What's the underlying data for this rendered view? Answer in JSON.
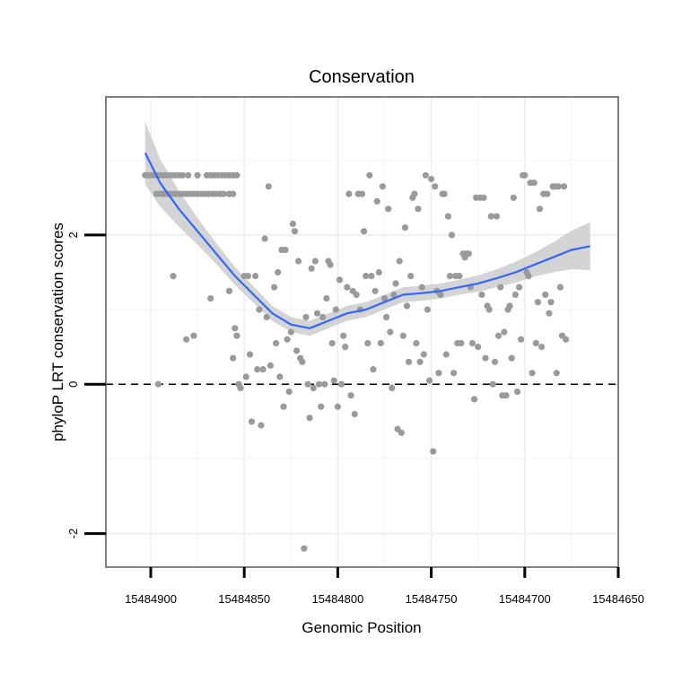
{
  "chart_data": {
    "type": "scatter",
    "title": "Conservation",
    "xlabel": "Genomic Position",
    "ylabel": "phyloP LRT conservation scores",
    "x_reversed": true,
    "xlim": [
      15484924,
      15484650
    ],
    "ylim": [
      -2.45,
      3.85
    ],
    "x_ticks": [
      15484900,
      15484850,
      15484800,
      15484750,
      15484700,
      15484650
    ],
    "y_ticks": [
      -2,
      0,
      2
    ],
    "grid": true,
    "reference_line": {
      "y": 0,
      "style": "dashed"
    },
    "colors": {
      "points": "#9a9a9a",
      "smooth": "#3366ff",
      "band": "#cccccc",
      "frame": "#808080"
    },
    "points": [
      [
        15484903,
        2.8
      ],
      [
        15484901,
        2.8
      ],
      [
        15484899,
        2.8
      ],
      [
        15484897,
        2.8
      ],
      [
        15484895,
        2.8
      ],
      [
        15484893,
        2.8
      ],
      [
        15484891,
        2.8
      ],
      [
        15484889,
        2.8
      ],
      [
        15484887,
        2.8
      ],
      [
        15484885,
        2.8
      ],
      [
        15484883,
        2.8
      ],
      [
        15484880,
        2.8
      ],
      [
        15484875,
        2.8
      ],
      [
        15484870,
        2.8
      ],
      [
        15484868,
        2.8
      ],
      [
        15484866,
        2.8
      ],
      [
        15484864,
        2.8
      ],
      [
        15484862,
        2.8
      ],
      [
        15484860,
        2.8
      ],
      [
        15484858,
        2.8
      ],
      [
        15484856,
        2.8
      ],
      [
        15484854,
        2.8
      ],
      [
        15484897,
        2.55
      ],
      [
        15484895,
        2.55
      ],
      [
        15484893,
        2.55
      ],
      [
        15484891,
        2.55
      ],
      [
        15484889,
        2.55
      ],
      [
        15484887,
        2.55
      ],
      [
        15484885,
        2.55
      ],
      [
        15484883,
        2.55
      ],
      [
        15484881,
        2.55
      ],
      [
        15484879,
        2.55
      ],
      [
        15484877,
        2.55
      ],
      [
        15484875,
        2.55
      ],
      [
        15484873,
        2.55
      ],
      [
        15484871,
        2.55
      ],
      [
        15484869,
        2.55
      ],
      [
        15484867,
        2.55
      ],
      [
        15484865,
        2.55
      ],
      [
        15484863,
        2.55
      ],
      [
        15484861,
        2.55
      ],
      [
        15484858,
        2.55
      ],
      [
        15484856,
        2.55
      ],
      [
        15484896,
        0.0
      ],
      [
        15484888,
        1.45
      ],
      [
        15484881,
        0.6
      ],
      [
        15484877,
        0.65
      ],
      [
        15484868,
        1.15
      ],
      [
        15484858,
        1.25
      ],
      [
        15484856,
        0.35
      ],
      [
        15484855,
        0.75
      ],
      [
        15484854,
        0.65
      ],
      [
        15484853,
        0.0
      ],
      [
        15484852,
        -0.05
      ],
      [
        15484850,
        1.45
      ],
      [
        15484849,
        0.1
      ],
      [
        15484848,
        1.45
      ],
      [
        15484847,
        0.4
      ],
      [
        15484846,
        -0.5
      ],
      [
        15484844,
        1.45
      ],
      [
        15484843,
        0.2
      ],
      [
        15484842,
        1.0
      ],
      [
        15484841,
        -0.55
      ],
      [
        15484840,
        0.2
      ],
      [
        15484839,
        1.95
      ],
      [
        15484838,
        0.9
      ],
      [
        15484837,
        2.65
      ],
      [
        15484836,
        0.25
      ],
      [
        15484834,
        1.3
      ],
      [
        15484833,
        0.55
      ],
      [
        15484832,
        1.5
      ],
      [
        15484831,
        0.1
      ],
      [
        15484830,
        1.8
      ],
      [
        15484829,
        -0.3
      ],
      [
        15484828,
        1.8
      ],
      [
        15484827,
        0.6
      ],
      [
        15484826,
        -0.1
      ],
      [
        15484825,
        0.7
      ],
      [
        15484824,
        2.15
      ],
      [
        15484823,
        2.05
      ],
      [
        15484822,
        0.45
      ],
      [
        15484821,
        1.65
      ],
      [
        15484820,
        0.35
      ],
      [
        15484819,
        0.3
      ],
      [
        15484818,
        -2.2
      ],
      [
        15484817,
        0.9
      ],
      [
        15484816,
        0.0
      ],
      [
        15484815,
        -0.45
      ],
      [
        15484814,
        1.55
      ],
      [
        15484813,
        -0.05
      ],
      [
        15484812,
        1.65
      ],
      [
        15484811,
        0.95
      ],
      [
        15484810,
        0.0
      ],
      [
        15484809,
        -0.3
      ],
      [
        15484808,
        0.9
      ],
      [
        15484807,
        0.0
      ],
      [
        15484806,
        1.15
      ],
      [
        15484805,
        1.65
      ],
      [
        15484804,
        1.6
      ],
      [
        15484803,
        0.55
      ],
      [
        15484802,
        0.05
      ],
      [
        15484801,
        1.0
      ],
      [
        15484800,
        -0.3
      ],
      [
        15484799,
        1.4
      ],
      [
        15484798,
        0.0
      ],
      [
        15484797,
        0.65
      ],
      [
        15484796,
        0.5
      ],
      [
        15484795,
        1.3
      ],
      [
        15484794,
        2.55
      ],
      [
        15484793,
        -0.15
      ],
      [
        15484792,
        1.25
      ],
      [
        15484791,
        -0.4
      ],
      [
        15484790,
        1.2
      ],
      [
        15484789,
        2.55
      ],
      [
        15484788,
        1.0
      ],
      [
        15484787,
        2.55
      ],
      [
        15484786,
        2.05
      ],
      [
        15484785,
        1.45
      ],
      [
        15484784,
        0.55
      ],
      [
        15484783,
        2.8
      ],
      [
        15484782,
        1.45
      ],
      [
        15484781,
        0.2
      ],
      [
        15484780,
        1.25
      ],
      [
        15484779,
        2.45
      ],
      [
        15484778,
        1.5
      ],
      [
        15484777,
        0.55
      ],
      [
        15484776,
        2.65
      ],
      [
        15484775,
        1.15
      ],
      [
        15484774,
        0.9
      ],
      [
        15484773,
        2.35
      ],
      [
        15484772,
        0.7
      ],
      [
        15484771,
        -0.05
      ],
      [
        15484770,
        1.2
      ],
      [
        15484769,
        1.35
      ],
      [
        15484768,
        -0.6
      ],
      [
        15484767,
        1.65
      ],
      [
        15484766,
        -0.65
      ],
      [
        15484765,
        0.65
      ],
      [
        15484764,
        2.1
      ],
      [
        15484763,
        1.05
      ],
      [
        15484762,
        0.3
      ],
      [
        15484761,
        1.45
      ],
      [
        15484760,
        2.5
      ],
      [
        15484759,
        2.55
      ],
      [
        15484758,
        0.55
      ],
      [
        15484757,
        2.35
      ],
      [
        15484756,
        0.3
      ],
      [
        15484755,
        1.3
      ],
      [
        15484754,
        0.4
      ],
      [
        15484753,
        2.8
      ],
      [
        15484752,
        1.0
      ],
      [
        15484751,
        0.05
      ],
      [
        15484750,
        2.75
      ],
      [
        15484749,
        -0.9
      ],
      [
        15484748,
        2.65
      ],
      [
        15484747,
        1.25
      ],
      [
        15484746,
        0.15
      ],
      [
        15484745,
        1.2
      ],
      [
        15484744,
        2.55
      ],
      [
        15484743,
        2.55
      ],
      [
        15484742,
        0.4
      ],
      [
        15484741,
        2.25
      ],
      [
        15484740,
        1.45
      ],
      [
        15484739,
        2.0
      ],
      [
        15484738,
        0.15
      ],
      [
        15484737,
        1.45
      ],
      [
        15484736,
        0.55
      ],
      [
        15484735,
        1.45
      ],
      [
        15484734,
        0.55
      ],
      [
        15484733,
        1.75
      ],
      [
        15484732,
        1.7
      ],
      [
        15484731,
        1.75
      ],
      [
        15484730,
        1.75
      ],
      [
        15484729,
        1.3
      ],
      [
        15484728,
        0.55
      ],
      [
        15484727,
        -0.2
      ],
      [
        15484726,
        2.5
      ],
      [
        15484725,
        0.5
      ],
      [
        15484724,
        2.5
      ],
      [
        15484723,
        1.2
      ],
      [
        15484722,
        2.5
      ],
      [
        15484721,
        0.35
      ],
      [
        15484720,
        1.05
      ],
      [
        15484719,
        1.0
      ],
      [
        15484718,
        2.25
      ],
      [
        15484717,
        0.0
      ],
      [
        15484716,
        0.3
      ],
      [
        15484715,
        2.25
      ],
      [
        15484714,
        0.65
      ],
      [
        15484713,
        1.3
      ],
      [
        15484712,
        -0.15
      ],
      [
        15484711,
        0.7
      ],
      [
        15484710,
        -0.15
      ],
      [
        15484709,
        1.0
      ],
      [
        15484708,
        1.05
      ],
      [
        15484707,
        0.35
      ],
      [
        15484706,
        2.5
      ],
      [
        15484705,
        1.2
      ],
      [
        15484704,
        -0.1
      ],
      [
        15484703,
        1.3
      ],
      [
        15484702,
        0.6
      ],
      [
        15484701,
        2.8
      ],
      [
        15484700,
        2.8
      ],
      [
        15484699,
        1.5
      ],
      [
        15484698,
        1.45
      ],
      [
        15484697,
        2.7
      ],
      [
        15484696,
        0.15
      ],
      [
        15484695,
        2.7
      ],
      [
        15484694,
        0.55
      ],
      [
        15484693,
        1.1
      ],
      [
        15484692,
        2.35
      ],
      [
        15484691,
        0.5
      ],
      [
        15484690,
        2.55
      ],
      [
        15484689,
        1.2
      ],
      [
        15484688,
        2.55
      ],
      [
        15484687,
        0.95
      ],
      [
        15484686,
        1.1
      ],
      [
        15484685,
        2.65
      ],
      [
        15484684,
        2.65
      ],
      [
        15484683,
        0.15
      ],
      [
        15484682,
        2.65
      ],
      [
        15484681,
        1.3
      ],
      [
        15484680,
        0.65
      ],
      [
        15484679,
        2.65
      ],
      [
        15484678,
        0.6
      ]
    ],
    "smooth": {
      "x": [
        15484903,
        15484895,
        15484885,
        15484875,
        15484865,
        15484855,
        15484845,
        15484835,
        15484825,
        15484815,
        15484805,
        15484795,
        15484785,
        15484775,
        15484765,
        15484755,
        15484745,
        15484735,
        15484725,
        15484715,
        15484705,
        15484695,
        15484685,
        15484675,
        15484665
      ],
      "y": [
        3.1,
        2.7,
        2.35,
        2.05,
        1.75,
        1.45,
        1.2,
        0.95,
        0.8,
        0.75,
        0.85,
        0.95,
        1.0,
        1.1,
        1.2,
        1.22,
        1.25,
        1.3,
        1.35,
        1.42,
        1.5,
        1.6,
        1.7,
        1.8,
        1.85
      ],
      "se": [
        0.42,
        0.32,
        0.24,
        0.18,
        0.14,
        0.12,
        0.11,
        0.1,
        0.1,
        0.1,
        0.1,
        0.1,
        0.1,
        0.1,
        0.1,
        0.1,
        0.1,
        0.1,
        0.11,
        0.12,
        0.14,
        0.16,
        0.2,
        0.26,
        0.32
      ]
    }
  }
}
